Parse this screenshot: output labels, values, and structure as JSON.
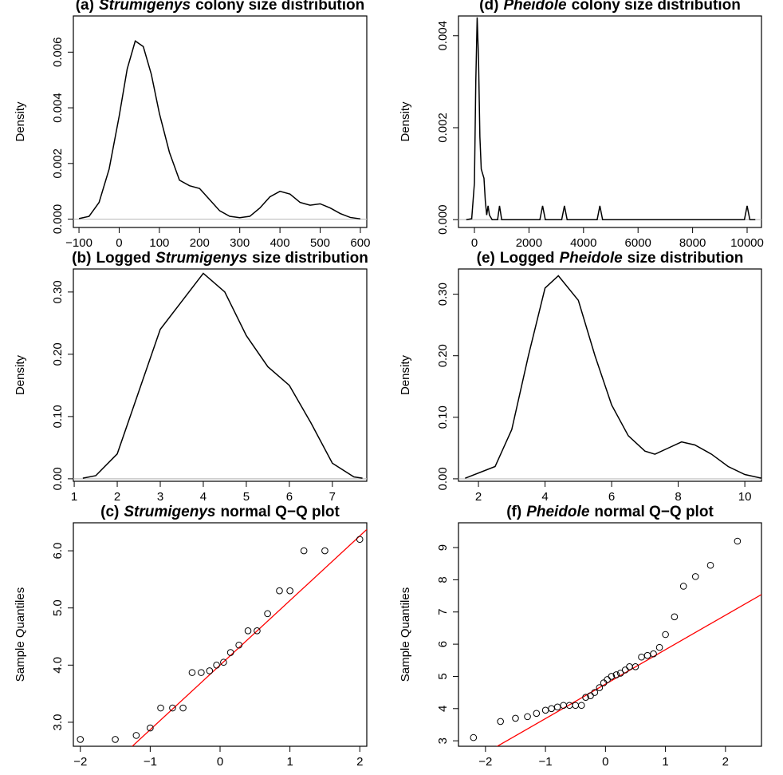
{
  "chart_data": [
    {
      "type": "line",
      "title_parts": [
        {
          "text": "(a)"
        },
        {
          "text": "Strumigenys",
          "italic": true
        },
        {
          "text": "colony size distribution"
        }
      ],
      "ylabel": "Density",
      "x": [
        -100,
        -75,
        -50,
        -25,
        0,
        20,
        40,
        60,
        80,
        100,
        125,
        150,
        175,
        200,
        225,
        250,
        275,
        300,
        325,
        350,
        375,
        400,
        425,
        450,
        475,
        500,
        525,
        550,
        575,
        600
      ],
      "values": [
        2e-05,
        0.0001,
        0.0006,
        0.0018,
        0.0037,
        0.0054,
        0.0064,
        0.0062,
        0.0052,
        0.0038,
        0.0024,
        0.0014,
        0.0012,
        0.0011,
        0.0007,
        0.0003,
        0.0001,
        5e-05,
        0.0001,
        0.0004,
        0.0008,
        0.001,
        0.0009,
        0.0006,
        0.0005,
        0.00055,
        0.0004,
        0.0002,
        6e-05,
        1e-05
      ],
      "color": "#000000",
      "hline": 0,
      "hline_color": "#bebebe",
      "xlim": [
        -114,
        616
      ],
      "xticks": [
        {
          "value": -100,
          "label": "−100"
        },
        0,
        100,
        200,
        300,
        400,
        500,
        600
      ],
      "ylim": [
        -0.0003,
        0.0073
      ],
      "yticks": [
        {
          "value": 0,
          "label": "0.000"
        },
        0.002,
        0.004,
        0.006
      ]
    },
    {
      "type": "line",
      "title_parts": [
        {
          "text": "(b)"
        },
        {
          "text": "Logged"
        },
        {
          "text": "Strumigenys",
          "italic": true
        },
        {
          "text": "size distribution"
        }
      ],
      "ylabel": "Density",
      "x": [
        1.2,
        1.5,
        2,
        2.5,
        3,
        3.5,
        4,
        4.5,
        5,
        5.5,
        6,
        6.5,
        7,
        7.5,
        7.7
      ],
      "values": [
        0.001,
        0.005,
        0.04,
        0.14,
        0.24,
        0.285,
        0.33,
        0.3,
        0.23,
        0.18,
        0.15,
        0.09,
        0.025,
        0.003,
        0.001
      ],
      "color": "#000000",
      "hline": 0,
      "hline_color": "#bebebe",
      "xlim": [
        0.98,
        7.8
      ],
      "xticks": [
        1,
        2,
        3,
        4,
        5,
        6,
        7
      ],
      "ylim": [
        -0.004,
        0.337
      ],
      "yticks": [
        {
          "value": 0,
          "label": "0.00"
        },
        {
          "value": 0.1,
          "label": "0.10"
        },
        {
          "value": 0.2,
          "label": "0.20"
        },
        {
          "value": 0.3,
          "label": "0.30"
        }
      ]
    },
    {
      "type": "scatter",
      "title_parts": [
        {
          "text": "(c)"
        },
        {
          "text": "Strumigenys",
          "italic": true
        },
        {
          "text": "normal Q−Q plot"
        }
      ],
      "ylabel": "Sample Quantiles",
      "x": [
        -2.0,
        -1.5,
        -1.2,
        -1.0,
        -0.85,
        -0.68,
        -0.53,
        -0.4,
        -0.27,
        -0.15,
        -0.05,
        0.05,
        0.15,
        0.27,
        0.4,
        0.53,
        0.68,
        0.85,
        1.0,
        1.2,
        1.5,
        2.0
      ],
      "values": [
        2.7,
        2.7,
        2.77,
        2.9,
        3.25,
        3.25,
        3.25,
        3.87,
        3.87,
        3.9,
        4.0,
        4.05,
        4.22,
        4.35,
        4.6,
        4.6,
        4.9,
        5.3,
        5.3,
        6.0,
        6.0,
        6.2
      ],
      "color": "#000000",
      "fit_line": {
        "intercept": 4.0,
        "slope": 1.13,
        "color": "#ff0000"
      },
      "xlim": [
        -2.1,
        2.1
      ],
      "xticks": [
        {
          "value": -2,
          "label": "−2"
        },
        {
          "value": -1,
          "label": "−1"
        },
        0,
        1,
        2
      ],
      "ylim": [
        2.58,
        6.49
      ],
      "yticks": [
        {
          "value": 3,
          "label": "3.0"
        },
        {
          "value": 4,
          "label": "4.0"
        },
        {
          "value": 5,
          "label": "5.0"
        },
        {
          "value": 6,
          "label": "6.0"
        }
      ]
    },
    {
      "type": "line",
      "title_parts": [
        {
          "text": "(d)"
        },
        {
          "text": "Pheidole",
          "italic": true
        },
        {
          "text": "colony size distribution"
        }
      ],
      "ylabel": "Density",
      "x": [
        -300,
        -100,
        0,
        50,
        100,
        150,
        200,
        250,
        300,
        350,
        400,
        450,
        500,
        550,
        650,
        850,
        920,
        1000,
        2400,
        2500,
        2600,
        3200,
        3300,
        3400,
        4500,
        4600,
        4700,
        9900,
        10000,
        10100,
        10300
      ],
      "values": [
        0,
        2e-05,
        0.0008,
        0.003,
        0.0044,
        0.0035,
        0.0018,
        0.0011,
        0.001,
        0.0009,
        0.0004,
        0.0001,
        0.0003,
        0.0001,
        0,
        0,
        0.0003,
        0,
        0,
        0.0003,
        0,
        0,
        0.0003,
        0,
        0,
        0.0003,
        0,
        0,
        0.0003,
        0,
        0
      ],
      "color": "#000000",
      "hline": 0,
      "hline_color": "#bebebe",
      "xlim": [
        -585,
        10526
      ],
      "xticks": [
        0,
        2000,
        4000,
        6000,
        8000,
        10000
      ],
      "ylim": [
        -0.00017,
        0.00443
      ],
      "yticks": [
        {
          "value": 0,
          "label": "0.000"
        },
        0.002,
        0.004
      ]
    },
    {
      "type": "line",
      "title_parts": [
        {
          "text": "(e)"
        },
        {
          "text": "Logged"
        },
        {
          "text": "Pheidole",
          "italic": true
        },
        {
          "text": "size distribution"
        }
      ],
      "ylabel": "Density",
      "x": [
        1.6,
        2.5,
        3,
        3.5,
        4,
        4.4,
        5,
        5.5,
        6,
        6.5,
        7,
        7.3,
        7.7,
        8.1,
        8.5,
        9,
        9.5,
        10,
        10.5
      ],
      "values": [
        0.001,
        0.02,
        0.08,
        0.2,
        0.31,
        0.33,
        0.29,
        0.2,
        0.12,
        0.07,
        0.045,
        0.04,
        0.05,
        0.06,
        0.055,
        0.04,
        0.02,
        0.007,
        0.001
      ],
      "color": "#000000",
      "hline": 0,
      "hline_color": "#bebebe",
      "xlim": [
        1.4,
        10.5
      ],
      "xticks": [
        2,
        4,
        6,
        8,
        10
      ],
      "ylim": [
        -0.004,
        0.341
      ],
      "yticks": [
        {
          "value": 0,
          "label": "0.00"
        },
        {
          "value": 0.1,
          "label": "0.10"
        },
        {
          "value": 0.2,
          "label": "0.20"
        },
        {
          "value": 0.3,
          "label": "0.30"
        }
      ]
    },
    {
      "type": "scatter",
      "title_parts": [
        {
          "text": "(f)"
        },
        {
          "text": "Pheidole",
          "italic": true
        },
        {
          "text": "normal Q−Q plot"
        }
      ],
      "ylabel": "Sample Quantiles",
      "x": [
        -2.2,
        -1.75,
        -1.5,
        -1.3,
        -1.15,
        -1.0,
        -0.9,
        -0.8,
        -0.7,
        -0.6,
        -0.5,
        -0.4,
        -0.33,
        -0.25,
        -0.18,
        -0.1,
        -0.03,
        0.03,
        0.1,
        0.18,
        0.25,
        0.33,
        0.4,
        0.5,
        0.6,
        0.7,
        0.8,
        0.9,
        1.0,
        1.15,
        1.3,
        1.5,
        1.75,
        2.2
      ],
      "values": [
        3.1,
        3.6,
        3.7,
        3.75,
        3.85,
        3.95,
        4.0,
        4.05,
        4.1,
        4.1,
        4.1,
        4.1,
        4.35,
        4.4,
        4.5,
        4.65,
        4.8,
        4.9,
        5.0,
        5.05,
        5.1,
        5.2,
        5.3,
        5.3,
        5.6,
        5.65,
        5.7,
        5.9,
        6.3,
        6.85,
        7.8,
        8.1,
        8.45,
        9.2
      ],
      "color": "#000000",
      "fit_line": {
        "intercept": 4.76,
        "slope": 1.07,
        "color": "#ff0000"
      },
      "xlim": [
        -2.45,
        2.6
      ],
      "xticks": [
        {
          "value": -2,
          "label": "−2"
        },
        {
          "value": -1,
          "label": "−1"
        },
        0,
        1,
        2
      ],
      "ylim": [
        2.83,
        9.77
      ],
      "yticks": [
        3,
        4,
        5,
        6,
        7,
        8,
        9
      ]
    }
  ]
}
